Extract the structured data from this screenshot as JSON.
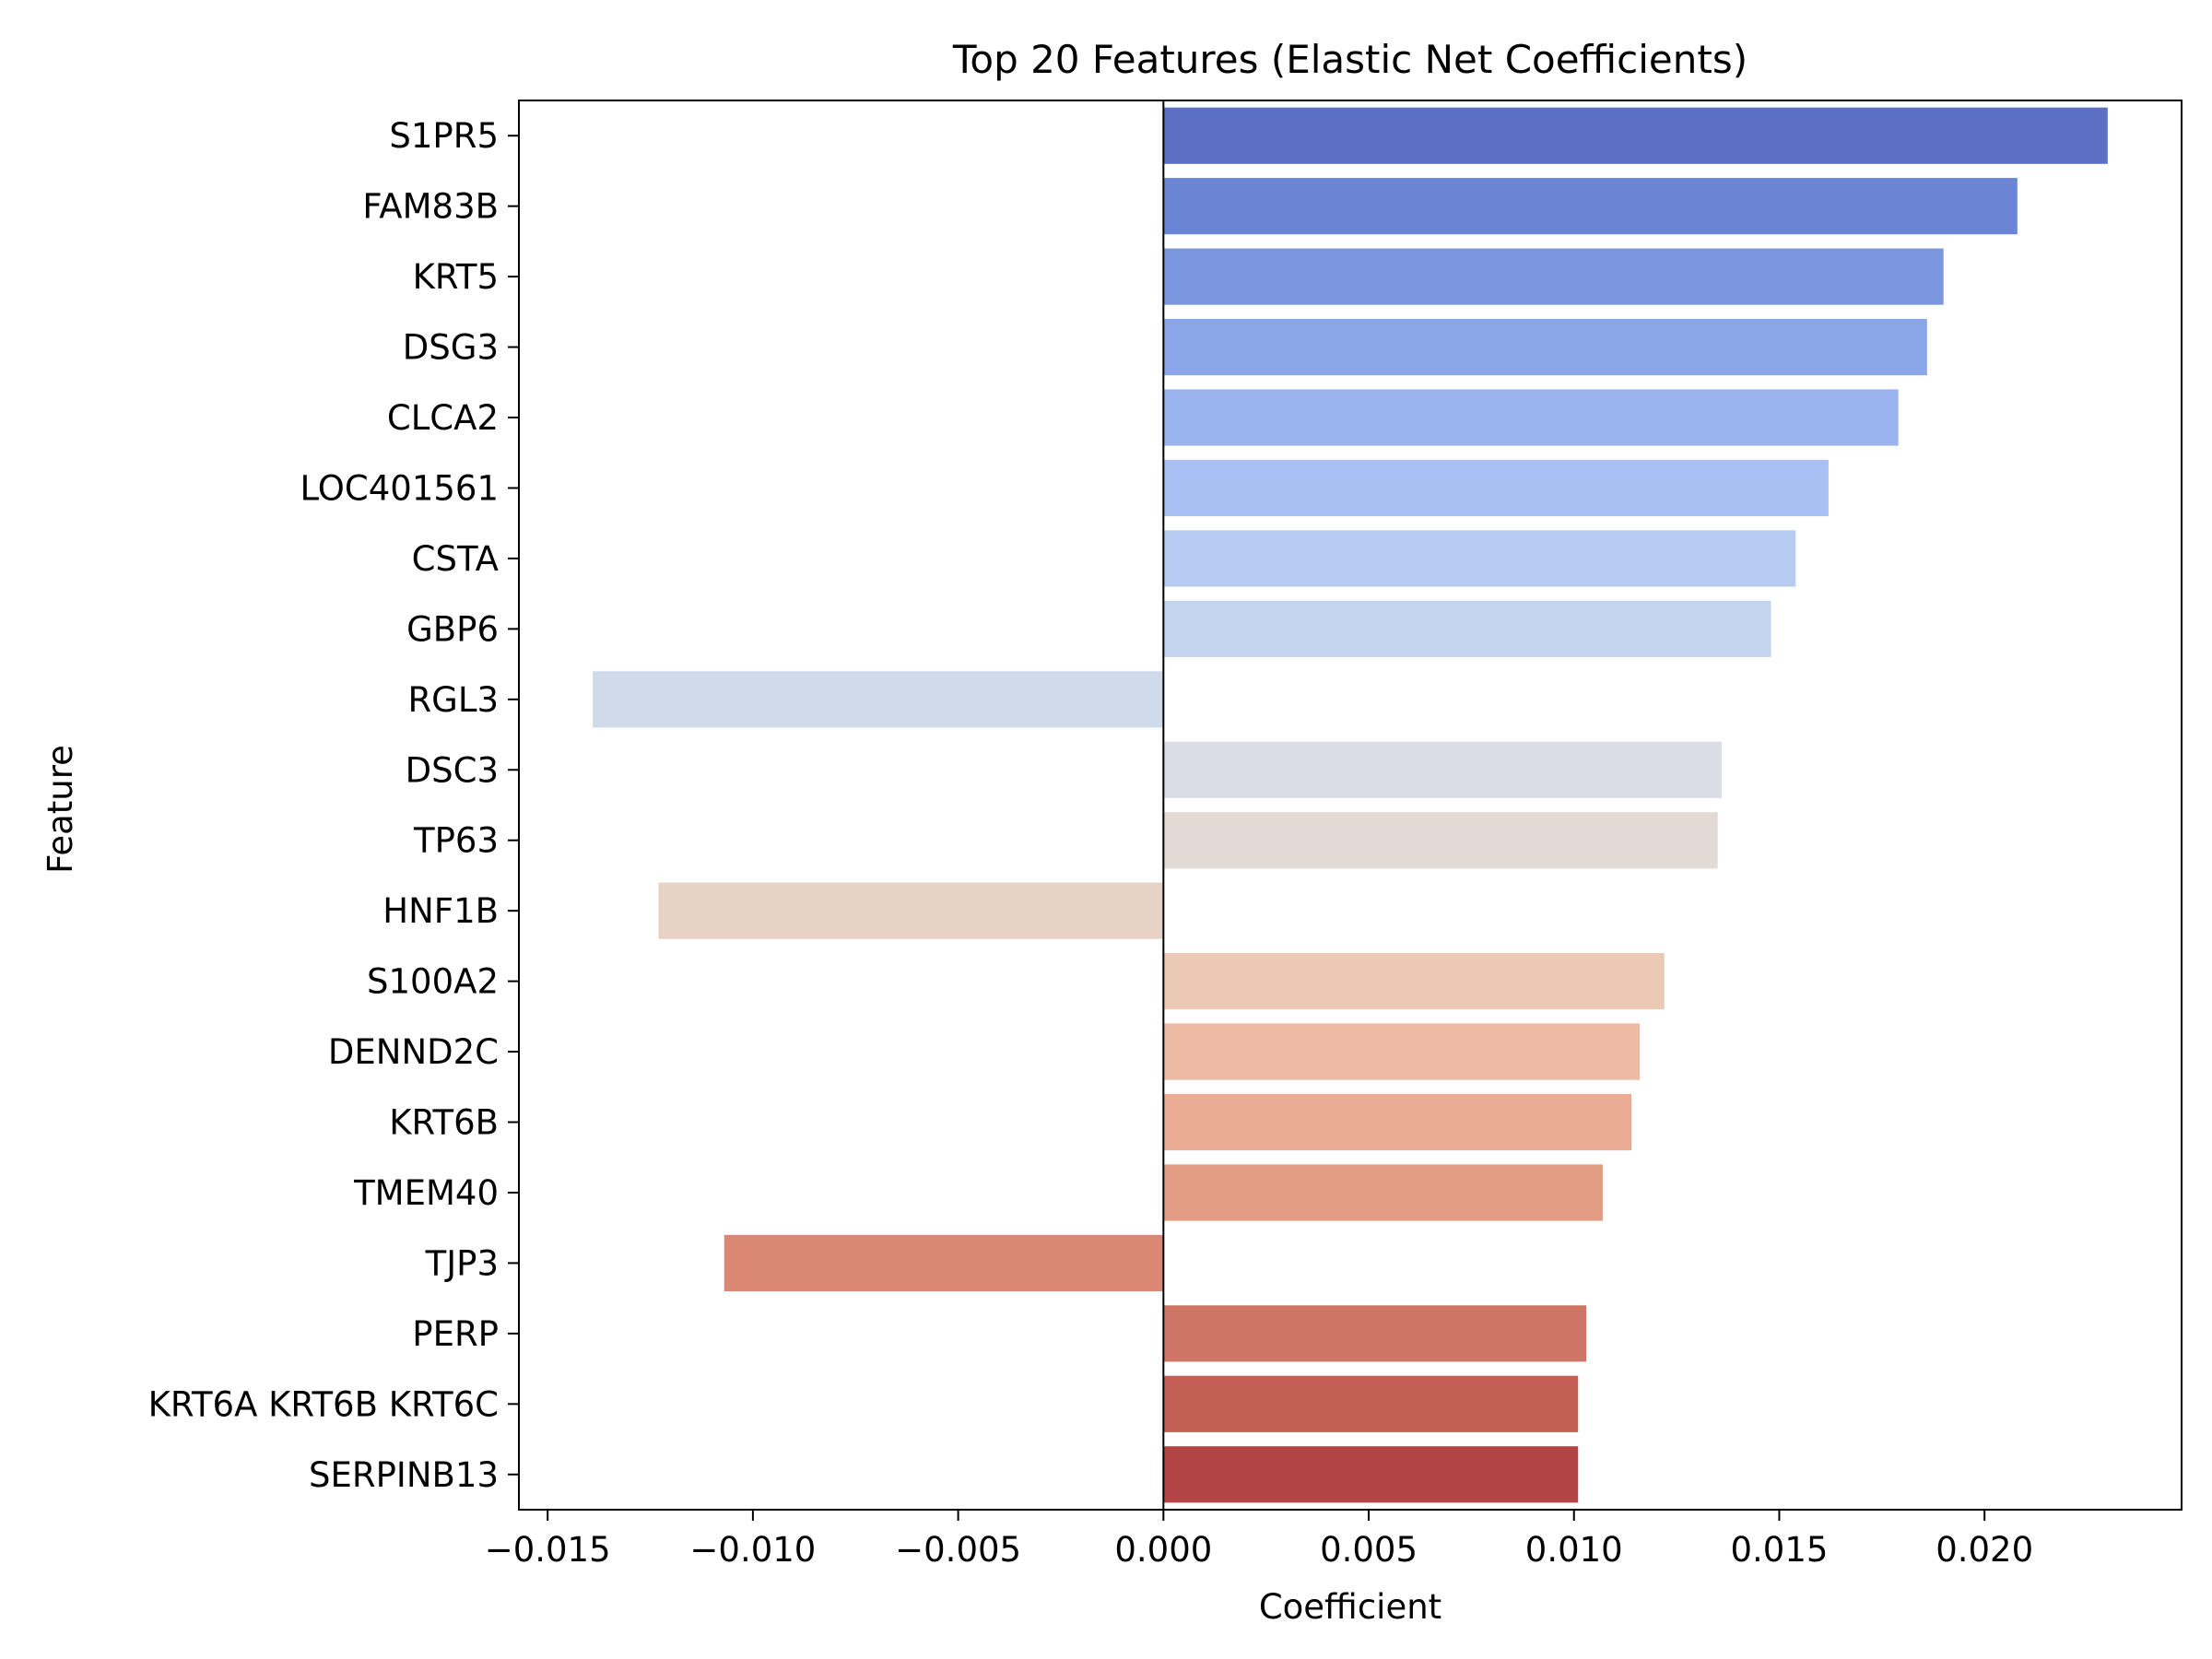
{
  "chart_data": {
    "type": "bar",
    "orientation": "horizontal",
    "title": "Top 20 Features (Elastic Net Coefficients)",
    "xlabel": "Coefficient",
    "ylabel": "Feature",
    "categories": [
      "S1PR5",
      "FAM83B",
      "KRT5",
      "DSG3",
      "CLCA2",
      "LOC401561",
      "CSTA",
      "GBP6",
      "RGL3",
      "DSC3",
      "TP63",
      "HNF1B",
      "S100A2",
      "DENND2C",
      "KRT6B",
      "TMEM40",
      "TJP3",
      "PERP",
      "KRT6A KRT6B KRT6C",
      "SERPINB13"
    ],
    "values": [
      0.023,
      0.0208,
      0.019,
      0.0186,
      0.0179,
      0.0162,
      0.0154,
      0.0148,
      -0.0139,
      0.0136,
      0.0135,
      -0.0123,
      0.0122,
      0.0116,
      0.0114,
      0.0107,
      -0.0107,
      0.0103,
      0.0101,
      0.0101
    ],
    "colors": [
      "#5b70c2",
      "#6a85d3",
      "#7a96df",
      "#8aa6e9",
      "#9ab4ef",
      "#a8c0f3",
      "#b6cbf2",
      "#c4d4ee",
      "#cfdaea",
      "#dadde6",
      "#e3dad6",
      "#e8d2c6",
      "#ecc9b5",
      "#edbba3",
      "#eaac92",
      "#e39c84",
      "#da8874",
      "#cf7565",
      "#c25e54",
      "#b24446"
    ],
    "xlim": [
      -0.0157,
      0.0248
    ],
    "xticks": [
      -0.015,
      -0.01,
      -0.005,
      0.0,
      0.005,
      0.01,
      0.015,
      0.02
    ],
    "xtick_labels": [
      "−0.015",
      "−0.010",
      "−0.005",
      "0.000",
      "0.005",
      "0.010",
      "0.015",
      "0.020"
    ],
    "zero_line": true,
    "grid": false,
    "legend": "none"
  }
}
